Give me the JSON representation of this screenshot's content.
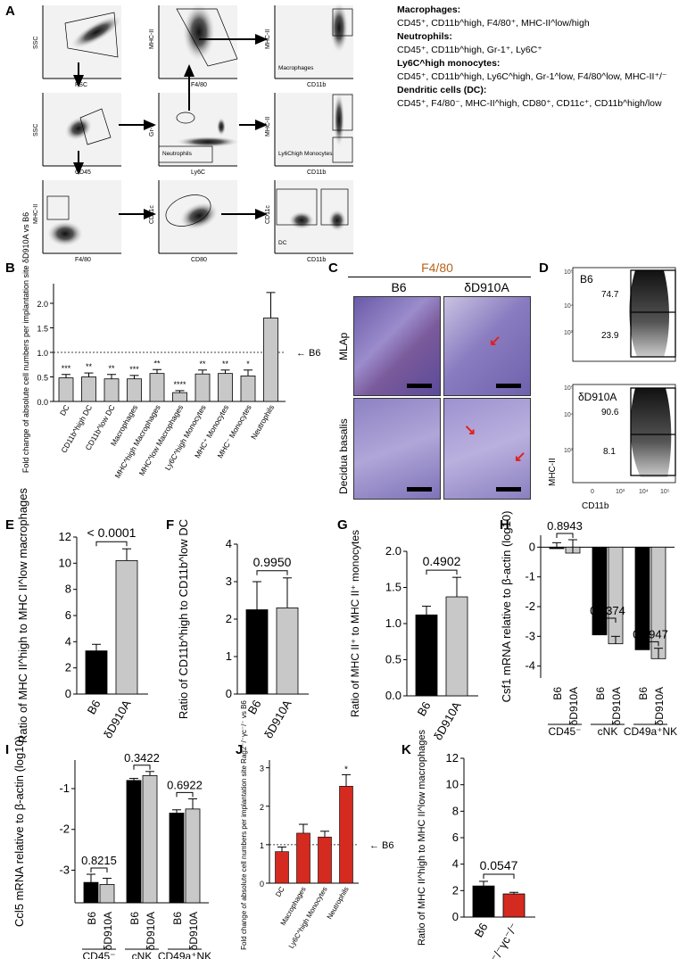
{
  "panels": {
    "A": "A",
    "B": "B",
    "C": "C",
    "D": "D",
    "E": "E",
    "F": "F",
    "G": "G",
    "H": "H",
    "I": "I",
    "J": "J",
    "K": "K"
  },
  "legend_A": [
    {
      "title": "Macrophages:",
      "text": "CD45⁺, CD11b^high, F4/80⁺, MHC-II^low/high"
    },
    {
      "title": "Neutrophils:",
      "text": "CD45⁺, CD11b^high, Gr-1⁺, Ly6C⁺"
    },
    {
      "title": "Ly6C^high monocytes:",
      "text": "CD45⁺, CD11b^high, Ly6C^high, Gr-1^low, F4/80^low, MHC-II⁺/⁻"
    },
    {
      "title": "Dendritic cells (DC):",
      "text": "CD45⁺, F4/80⁻, MHC-II^high, CD80⁺, CD11c⁺, CD11b^high/low"
    }
  ],
  "flow_A": {
    "row1": [
      {
        "x": "FSC",
        "y": "SSC"
      },
      {
        "x": "F4/80",
        "y": "MHC-II"
      },
      {
        "x": "CD11b",
        "y": "MHC-II",
        "gate": "Macrophages"
      }
    ],
    "row2": [
      {
        "x": "CD45",
        "y": "SSC"
      },
      {
        "x": "Ly6C",
        "y": "Gr-1",
        "gate": "Neutrophils"
      },
      {
        "x": "CD11b",
        "y": "MHC-II",
        "gate": "Ly6Chigh Monocytes"
      }
    ],
    "row3": [
      {
        "x": "F4/80",
        "y": "MHC-II"
      },
      {
        "x": "CD80",
        "y": "CD11c"
      },
      {
        "x": "CD11b",
        "y": "CD11c",
        "gate": "DC"
      }
    ]
  },
  "panel_C": {
    "title": "F4/80",
    "col1": "B6",
    "col2": "δD910A",
    "row1": "MLAp",
    "row2": "Decidua basalis"
  },
  "panel_D": {
    "top_label": "B6",
    "top_high": "74.7",
    "top_low": "23.9",
    "bot_label": "δD910A",
    "bot_high": "90.6",
    "bot_low": "8.1",
    "xlabel": "CD11b",
    "ylabel": "MHC-II"
  },
  "chart_data": [
    {
      "id": "B",
      "type": "bar",
      "ylabel": "Fold change of absolute cell numbers per implantation site δD910A vs B6",
      "ylim": [
        0,
        2.4
      ],
      "categories": [
        "DC",
        "CD11b^high DC",
        "CD11b^low DC",
        "Macrophages",
        "MHC^high Macrophages",
        "MHC^low Macrophages",
        "Ly6C^high Monocytes",
        "MHC⁺ Monocytes",
        "MHC⁻ Monocytes",
        "Neutrophils"
      ],
      "values": [
        0.48,
        0.5,
        0.46,
        0.46,
        0.57,
        0.18,
        0.56,
        0.57,
        0.52,
        1.7
      ],
      "errors": [
        0.07,
        0.08,
        0.09,
        0.07,
        0.08,
        0.04,
        0.08,
        0.07,
        0.12,
        0.52
      ],
      "stars": [
        "***",
        "**",
        "**",
        "***",
        "**",
        "****",
        "**",
        "**",
        "*",
        ""
      ],
      "reference_label": "B6",
      "reference": 1.0,
      "yticks": [
        "0.0",
        "0.5",
        "1.0",
        "1.5",
        "2.0"
      ]
    },
    {
      "id": "E",
      "type": "bar",
      "ylabel": "Ratio of MHC II^high to MHC II^low macrophages",
      "categories": [
        "B6",
        "δD910A"
      ],
      "values": [
        3.3,
        10.2
      ],
      "errors": [
        0.5,
        0.9
      ],
      "ylim": [
        0,
        12
      ],
      "yticks": [
        "0",
        "2",
        "4",
        "6",
        "8",
        "10",
        "12"
      ],
      "pvalue": "< 0.0001",
      "colors": [
        "#000000",
        "#c8c8c8"
      ]
    },
    {
      "id": "F",
      "type": "bar",
      "ylabel": "Ratio of CD11b^high to CD11b^low DC",
      "categories": [
        "B6",
        "δD910A"
      ],
      "values": [
        2.25,
        2.3
      ],
      "errors": [
        0.75,
        0.8
      ],
      "ylim": [
        0,
        4
      ],
      "yticks": [
        "0",
        "1",
        "2",
        "3",
        "4"
      ],
      "pvalue": "0.9950",
      "colors": [
        "#000000",
        "#c8c8c8"
      ]
    },
    {
      "id": "G",
      "type": "bar",
      "ylabel": "Ratio of MHC II⁺ to MHC II⁺ monocytes",
      "categories": [
        "B6",
        "δD910A"
      ],
      "values": [
        1.12,
        1.37
      ],
      "errors": [
        0.12,
        0.27
      ],
      "ylim": [
        0,
        2
      ],
      "yticks": [
        "0.0",
        "0.5",
        "1.0",
        "1.5",
        "2.0"
      ],
      "pvalue": "0.4902",
      "colors": [
        "#000000",
        "#c8c8c8"
      ]
    },
    {
      "id": "H",
      "type": "bar",
      "ylabel": "Csf1 mRNA relative to β-actin (log10)",
      "groups": [
        "CD45⁻",
        "cNK",
        "CD49a⁺NK"
      ],
      "series": [
        {
          "name": "B6",
          "values": [
            -0.05,
            -2.95,
            -3.45
          ]
        },
        {
          "name": "δD910A",
          "values": [
            -0.2,
            -3.25,
            -3.75
          ]
        }
      ],
      "errors": [
        [
          0.2,
          0.35,
          0.06
        ],
        [
          0.45,
          0.25,
          0.35
        ]
      ],
      "ylim": [
        -4.4,
        0.4
      ],
      "yticks": [
        "0",
        "-1",
        "-2",
        "-3",
        "-4"
      ],
      "pvalues": [
        "0.8943",
        "0.5374",
        "0.8947"
      ]
    },
    {
      "id": "I",
      "type": "bar",
      "ylabel": "Ccl5 mRNA relative to β-actin (log10)",
      "groups": [
        "CD45⁻",
        "cNK",
        "CD49a⁺NK"
      ],
      "series": [
        {
          "name": "B6",
          "values": [
            -3.3,
            -0.8,
            -1.6
          ]
        },
        {
          "name": "δD910A",
          "values": [
            -3.35,
            -0.68,
            -1.5
          ]
        }
      ],
      "errors": [
        [
          0.2,
          0.05,
          0.08
        ],
        [
          0.15,
          0.1,
          0.25
        ]
      ],
      "ylim": [
        -3.8,
        -0.3
      ],
      "yticks": [
        "-1",
        "-2",
        "-3"
      ],
      "pvalues": [
        "0.8215",
        "0.3422",
        "0.6922"
      ]
    },
    {
      "id": "J",
      "type": "bar",
      "ylabel": "Fold change of absolute cell numbers per implantation site Rag2⁻/⁻γc⁻/⁻ vs B6",
      "categories": [
        "DC",
        "Macrophages",
        "Ly6C^high Monocytes",
        "Neutrophils"
      ],
      "values": [
        0.82,
        1.3,
        1.2,
        2.52
      ],
      "errors": [
        0.12,
        0.23,
        0.15,
        0.3
      ],
      "ylim": [
        0,
        3.2
      ],
      "yticks": [
        "0",
        "1",
        "2",
        "3"
      ],
      "stars": [
        "",
        "",
        "",
        "*"
      ],
      "reference_label": "B6",
      "reference": 1.0,
      "color": "#d42a1f"
    },
    {
      "id": "K",
      "type": "bar",
      "ylabel": "Ratio of MHC II^high to MHC II^low macrophages",
      "categories": [
        "B6",
        "Rag2⁻/⁻γc⁻/⁻"
      ],
      "values": [
        2.35,
        1.75
      ],
      "errors": [
        0.35,
        0.12
      ],
      "ylim": [
        0,
        12
      ],
      "yticks": [
        "0",
        "2",
        "4",
        "6",
        "8",
        "10",
        "12"
      ],
      "pvalue": "0.0547",
      "colors": [
        "#000000",
        "#d42a1f"
      ]
    }
  ]
}
